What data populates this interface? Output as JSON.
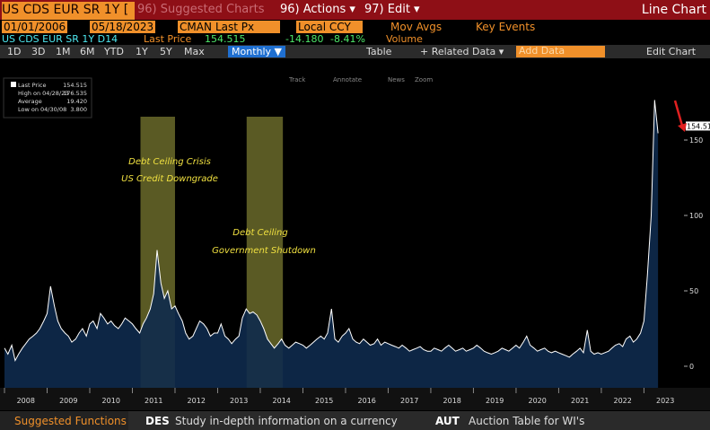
{
  "header": {
    "security": "US CDS EUR SR 1Y [",
    "suggested": "96) Suggested Charts",
    "actions": "96) Actions ▾",
    "edit": "97) Edit ▾",
    "chart_kind": "Line Chart"
  },
  "controls": {
    "start_date": "01/01/2006",
    "end_date": "05/18/2023",
    "source": "CMAN",
    "field": "Last Px",
    "currency": "Local CCY",
    "mov_avgs": "Mov Avgs",
    "key_events": "Key Events"
  },
  "quote": {
    "ticker": "US CDS EUR SR 1Y D14",
    "label": "Last Price",
    "price": "154.515",
    "change": "-14.180",
    "change_pct": "-8.41%",
    "volume": "Volume"
  },
  "toolbar": {
    "periods": [
      "1D",
      "3D",
      "1M",
      "6M",
      "YTD",
      "1Y",
      "5Y",
      "Max"
    ],
    "frequency": "Monthly ▼",
    "table": "Table",
    "related": "+ Related Data ▾",
    "add_data": "Add Data",
    "edit_chart": "Edit Chart",
    "tools": [
      "Track",
      "Annotate",
      "News",
      "Zoom"
    ]
  },
  "chart_data": {
    "type": "area",
    "x": [
      2008.0,
      2008.08,
      2008.17,
      2008.25,
      2008.33,
      2008.42,
      2008.5,
      2008.58,
      2008.67,
      2008.75,
      2008.83,
      2008.92,
      2009.0,
      2009.08,
      2009.17,
      2009.25,
      2009.33,
      2009.42,
      2009.5,
      2009.58,
      2009.67,
      2009.75,
      2009.83,
      2009.92,
      2010.0,
      2010.08,
      2010.17,
      2010.25,
      2010.33,
      2010.42,
      2010.5,
      2010.58,
      2010.67,
      2010.75,
      2010.83,
      2010.92,
      2011.0,
      2011.08,
      2011.17,
      2011.25,
      2011.33,
      2011.42,
      2011.5,
      2011.58,
      2011.67,
      2011.75,
      2011.83,
      2011.92,
      2012.0,
      2012.08,
      2012.17,
      2012.25,
      2012.33,
      2012.42,
      2012.5,
      2012.58,
      2012.67,
      2012.75,
      2012.83,
      2012.92,
      2013.0,
      2013.08,
      2013.17,
      2013.25,
      2013.33,
      2013.42,
      2013.5,
      2013.58,
      2013.67,
      2013.75,
      2013.83,
      2013.92,
      2014.0,
      2014.08,
      2014.17,
      2014.25,
      2014.33,
      2014.42,
      2014.5,
      2014.58,
      2014.67,
      2014.75,
      2014.83,
      2014.92,
      2015.0,
      2015.08,
      2015.17,
      2015.25,
      2015.33,
      2015.42,
      2015.5,
      2015.58,
      2015.67,
      2015.75,
      2015.83,
      2015.92,
      2016.0,
      2016.08,
      2016.17,
      2016.25,
      2016.33,
      2016.42,
      2016.5,
      2016.58,
      2016.67,
      2016.75,
      2016.83,
      2016.92,
      2017.0,
      2017.08,
      2017.17,
      2017.25,
      2017.33,
      2017.42,
      2017.5,
      2017.58,
      2017.67,
      2017.75,
      2017.83,
      2017.92,
      2018.0,
      2018.08,
      2018.17,
      2018.25,
      2018.33,
      2018.42,
      2018.5,
      2018.58,
      2018.67,
      2018.75,
      2018.83,
      2018.92,
      2019.0,
      2019.08,
      2019.17,
      2019.25,
      2019.33,
      2019.42,
      2019.5,
      2019.58,
      2019.67,
      2019.75,
      2019.83,
      2019.92,
      2020.0,
      2020.08,
      2020.17,
      2020.25,
      2020.33,
      2020.42,
      2020.5,
      2020.58,
      2020.67,
      2020.75,
      2020.83,
      2020.92,
      2021.0,
      2021.08,
      2021.17,
      2021.25,
      2021.33,
      2021.42,
      2021.5,
      2021.58,
      2021.67,
      2021.75,
      2021.83,
      2021.92,
      2022.0,
      2022.08,
      2022.17,
      2022.25,
      2022.33,
      2022.42,
      2022.5,
      2022.58,
      2022.67,
      2022.75,
      2022.83,
      2022.92,
      2023.0,
      2023.08,
      2023.17,
      2023.25,
      2023.33
    ],
    "series": [
      {
        "name": "Last Price",
        "color": "#ffffff",
        "fill": "#0e2a4c",
        "values": [
          12,
          8,
          14,
          3.8,
          8,
          12,
          15,
          18,
          20,
          22,
          25,
          30,
          35,
          53,
          40,
          30,
          25,
          22,
          20,
          16,
          18,
          22,
          25,
          20,
          28,
          30,
          25,
          35,
          32,
          28,
          30,
          27,
          25,
          28,
          32,
          30,
          28,
          25,
          22,
          28,
          32,
          38,
          48,
          77,
          55,
          45,
          50,
          38,
          40,
          35,
          30,
          22,
          18,
          20,
          25,
          30,
          28,
          25,
          20,
          22,
          22,
          28,
          20,
          18,
          15,
          18,
          20,
          32,
          38,
          35,
          36,
          34,
          30,
          25,
          18,
          15,
          12,
          15,
          18,
          14,
          12,
          14,
          16,
          15,
          14,
          12,
          14,
          16,
          18,
          20,
          18,
          22,
          38,
          18,
          16,
          20,
          22,
          25,
          18,
          16,
          15,
          18,
          16,
          14,
          15,
          18,
          14,
          16,
          15,
          14,
          13,
          12,
          14,
          12,
          10,
          11,
          12,
          13,
          11,
          10,
          10,
          12,
          11,
          10,
          12,
          14,
          12,
          10,
          11,
          12,
          10,
          11,
          12,
          14,
          12,
          10,
          9,
          8,
          9,
          10,
          12,
          11,
          10,
          12,
          14,
          12,
          16,
          20,
          14,
          12,
          10,
          11,
          12,
          10,
          9,
          10,
          9,
          8,
          7,
          6,
          8,
          10,
          12,
          9,
          24,
          10,
          8,
          9,
          8,
          9,
          10,
          12,
          14,
          15,
          13,
          18,
          20,
          16,
          18,
          22,
          30,
          60,
          100,
          176.535,
          154.515
        ]
      }
    ],
    "xlim": [
      2008,
      2023.77
    ],
    "xticks": [
      2008,
      2009,
      2010,
      2011,
      2012,
      2013,
      2014,
      2015,
      2016,
      2017,
      2018,
      2019,
      2020,
      2021,
      2022,
      2023
    ],
    "ylim": [
      -14.3,
      201.2
    ],
    "yticks": [
      0,
      50,
      100,
      150
    ],
    "grid": false,
    "highlights": [
      {
        "start": 2011.19,
        "end": 2012.0,
        "color": "#c8c850"
      },
      {
        "start": 2013.68,
        "end": 2014.53,
        "color": "#c8c850"
      }
    ],
    "annotations": [
      "Debt Ceiling Crisis",
      "US Credit Downgrade",
      "Debt Ceiling",
      "Government Shutdown"
    ],
    "stats": [
      {
        "label": "Last Price",
        "value": "154.515"
      },
      {
        "label": "High on 04/28/23",
        "value": "176.535"
      },
      {
        "label": "Average",
        "value": "19.420"
      },
      {
        "label": "Low on 04/30/08",
        "value": "3.800"
      }
    ],
    "last_label": "154.51"
  },
  "footer": {
    "suggested": "Suggested Functions",
    "f1_code": "DES",
    "f1_text": "Study in-depth information on a currency",
    "f2_code": "AUT",
    "f2_text": "Auction Table for WI's"
  }
}
